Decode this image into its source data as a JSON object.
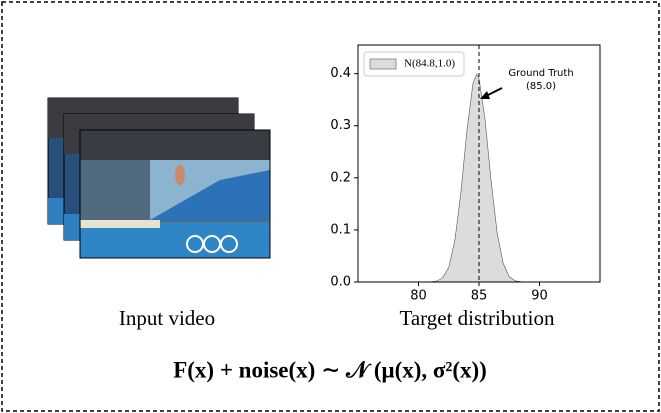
{
  "chart_data": {
    "type": "area",
    "legend": "N(84.8,1.0)",
    "color": "#dcdcdc",
    "x": [
      81,
      81.5,
      82,
      82.5,
      83,
      83.5,
      84,
      84.5,
      84.8,
      85,
      85.5,
      86,
      86.5,
      87,
      87.5,
      88,
      88.5
    ],
    "values": [
      0.0003,
      0.0017,
      0.008,
      0.028,
      0.079,
      0.171,
      0.29,
      0.381,
      0.399,
      0.391,
      0.312,
      0.194,
      0.094,
      0.036,
      0.01,
      0.002,
      0.0004
    ],
    "xlim": [
      75,
      95
    ],
    "xticks": [
      80,
      85,
      90
    ],
    "ylim": [
      0,
      0.455
    ],
    "yticks": [
      {
        "value": 0,
        "label": "0.0"
      },
      0.1,
      0.2,
      0.3,
      0.4
    ],
    "ground_truth": {
      "value": 85,
      "label": "Ground Truth",
      "value_label": "(85.0)"
    }
  },
  "captions": {
    "video": "Input video",
    "chart": "Target distribution"
  },
  "formula": "F(x) + noise(x) ∼ 𝒩 (μ(x), σ²(x))"
}
